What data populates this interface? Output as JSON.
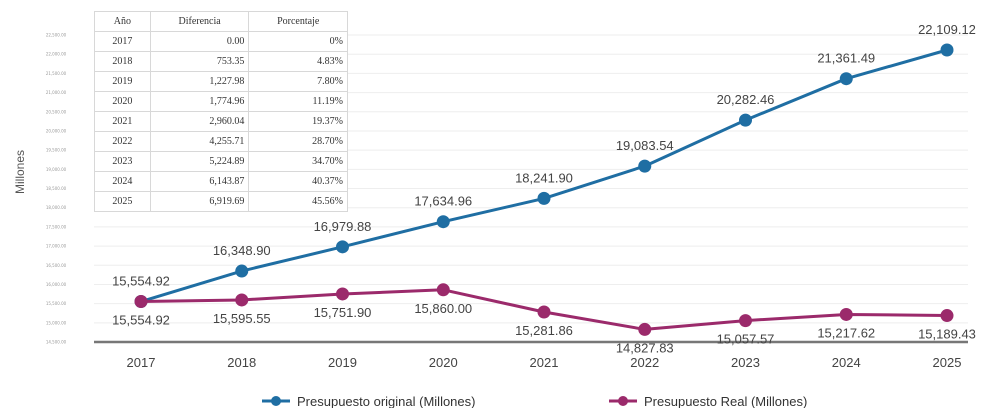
{
  "chart_data": {
    "type": "line",
    "ylabel": "Millones",
    "y_ticks": [
      "14,500.00",
      "15,000.00",
      "15,500.00",
      "16,000.00",
      "16,500.00",
      "17,000.00",
      "17,500.00",
      "18,000.00",
      "18,500.00",
      "19,000.00",
      "19,500.00",
      "20,000.00",
      "20,500.00",
      "21,000.00",
      "21,500.00",
      "22,000.00",
      "22,500.00"
    ],
    "ylim": [
      14500,
      22500
    ],
    "categories": [
      "2017",
      "2018",
      "2019",
      "2020",
      "2021",
      "2022",
      "2023",
      "2024",
      "2025"
    ],
    "series": [
      {
        "name": "Presupuesto original (Millones)",
        "color": "#1f6ea3",
        "values": [
          15554.92,
          16348.9,
          16979.88,
          17634.96,
          18241.9,
          19083.54,
          20282.46,
          21361.49,
          22109.12
        ],
        "labels": [
          "15,554.92",
          "16,348.90",
          "16,979.88",
          "17,634.96",
          "18,241.90",
          "19,083.54",
          "20,282.46",
          "21,361.49",
          "22,109.12"
        ]
      },
      {
        "name": "Presupuesto Real (Millones)",
        "color": "#9b2a6b",
        "values": [
          15554.92,
          15595.55,
          15751.9,
          15860.0,
          15281.86,
          14827.83,
          15057.57,
          15217.62,
          15189.43
        ],
        "labels": [
          "15,554.92",
          "15,595.55",
          "15,751.90",
          "15,860.00",
          "15,281.86",
          "14,827.83",
          "15,057.57",
          "15,217.62",
          "15,189.43"
        ]
      }
    ],
    "legend_position": "bottom",
    "grid": true,
    "table": {
      "headers": [
        "Año",
        "Diferencia",
        "Porcentaje"
      ],
      "rows": [
        [
          "2017",
          "0.00",
          "0%"
        ],
        [
          "2018",
          "753.35",
          "4.83%"
        ],
        [
          "2019",
          "1,227.98",
          "7.80%"
        ],
        [
          "2020",
          "1,774.96",
          "11.19%"
        ],
        [
          "2021",
          "2,960.04",
          "19.37%"
        ],
        [
          "2022",
          "4,255.71",
          "28.70%"
        ],
        [
          "2023",
          "5,224.89",
          "34.70%"
        ],
        [
          "2024",
          "6,143.87",
          "40.37%"
        ],
        [
          "2025",
          "6,919.69",
          "45.56%"
        ]
      ]
    }
  }
}
